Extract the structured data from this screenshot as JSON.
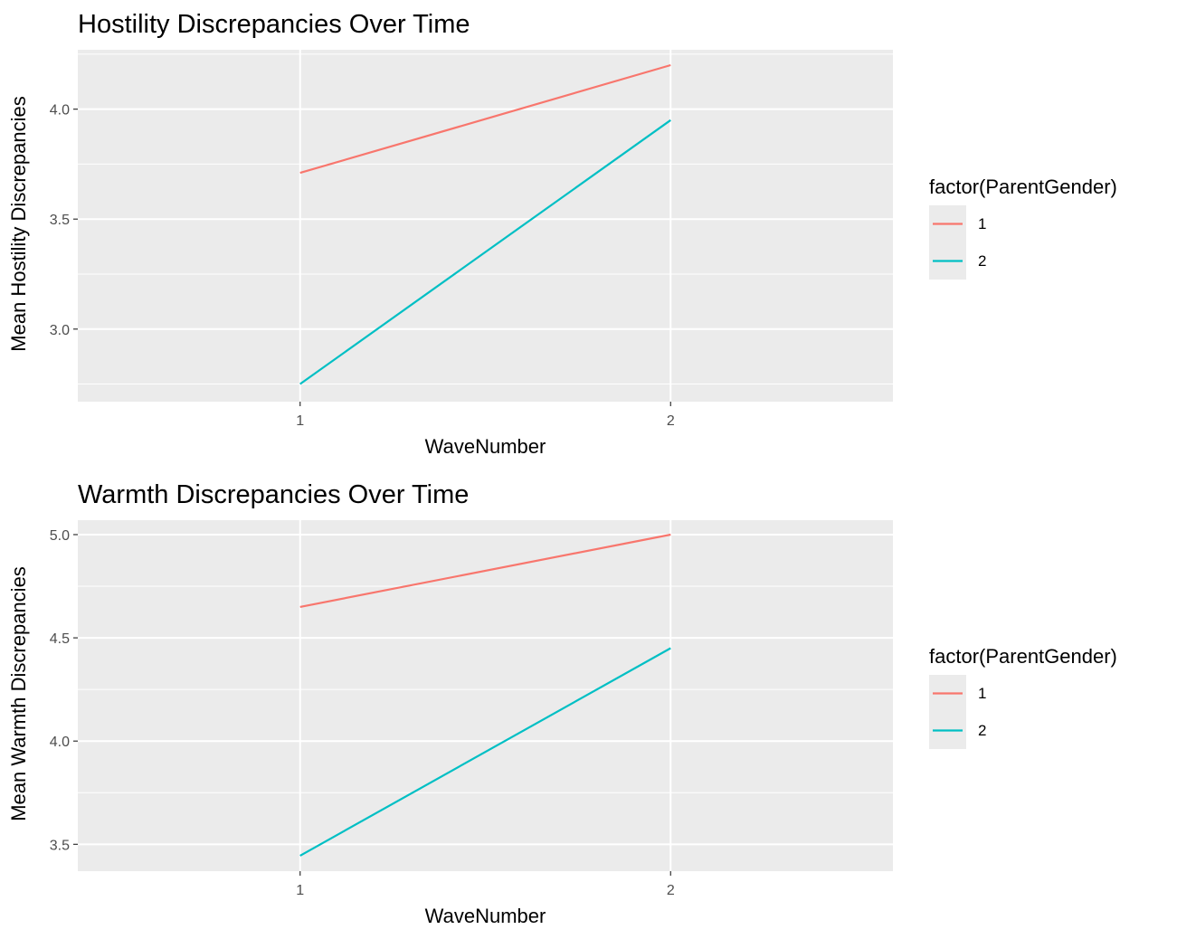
{
  "chart_data": [
    {
      "type": "line",
      "title": "Hostility Discrepancies Over Time",
      "xlabel": "WaveNumber",
      "ylabel": "Mean Hostility Discrepancies",
      "x": [
        1,
        2
      ],
      "xticks": [
        "1",
        "2"
      ],
      "xlim": [
        0.4,
        2.6
      ],
      "ylim": [
        2.67,
        4.27
      ],
      "yticks": [
        3.0,
        3.5,
        4.0
      ],
      "ytick_labels": [
        "3.0",
        "3.5",
        "4.0"
      ],
      "grid": true,
      "legend": {
        "title": "factor(ParentGender)",
        "position": "right"
      },
      "series": [
        {
          "name": "1",
          "color": "#F8766D",
          "values": [
            3.71,
            4.2
          ]
        },
        {
          "name": "2",
          "color": "#00BFC4",
          "values": [
            2.75,
            3.95
          ]
        }
      ]
    },
    {
      "type": "line",
      "title": "Warmth Discrepancies Over Time",
      "xlabel": "WaveNumber",
      "ylabel": "Mean Warmth Discrepancies",
      "x": [
        1,
        2
      ],
      "xticks": [
        "1",
        "2"
      ],
      "xlim": [
        0.4,
        2.6
      ],
      "ylim": [
        3.37,
        5.07
      ],
      "yticks": [
        3.5,
        4.0,
        4.5,
        5.0
      ],
      "ytick_labels": [
        "3.5",
        "4.0",
        "4.5",
        "5.0"
      ],
      "grid": true,
      "legend": {
        "title": "factor(ParentGender)",
        "position": "right"
      },
      "series": [
        {
          "name": "1",
          "color": "#F8766D",
          "values": [
            4.65,
            5.0
          ]
        },
        {
          "name": "2",
          "color": "#00BFC4",
          "values": [
            3.445,
            4.45
          ]
        }
      ]
    }
  ]
}
